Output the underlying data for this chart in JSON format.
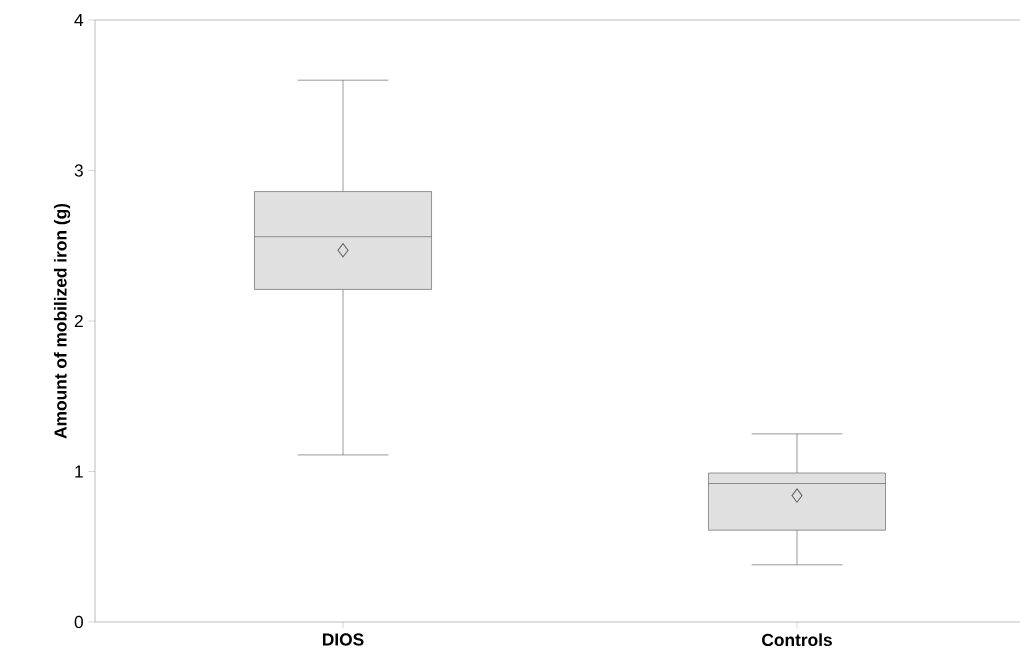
{
  "chart_data": {
    "type": "box",
    "ylabel": "Amount of mobilized iron (g)",
    "categories": [
      "DIOS",
      "Controls"
    ],
    "boxes": [
      {
        "low": 1.11,
        "q1": 2.21,
        "median": 2.56,
        "q3": 2.86,
        "high": 3.6,
        "mean": 2.47
      },
      {
        "low": 0.38,
        "q1": 0.61,
        "median": 0.92,
        "q3": 0.99,
        "high": 1.25,
        "mean": 0.84
      }
    ],
    "color": "#e0e0e0",
    "ylim": [
      0,
      4
    ],
    "yticks": [
      0,
      1,
      2,
      3,
      4
    ],
    "grid": false
  }
}
